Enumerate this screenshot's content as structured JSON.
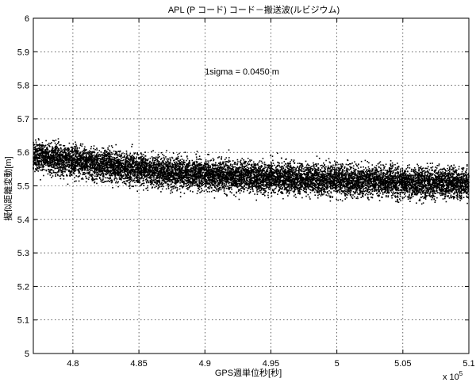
{
  "chart_data": {
    "type": "scatter",
    "title": "APL (P コード) コード－搬送波(ルビジウム)",
    "xlabel": "GPS週単位秒[秒]",
    "ylabel": "擬似距離変動[m]",
    "x_exponent_label": "x 10",
    "x_exponent_power": "5",
    "annotation": "1sigma = 0.0450 m",
    "xlim": [
      477000,
      510000
    ],
    "ylim": [
      5.0,
      6.0
    ],
    "xticks": [
      480000,
      485000,
      490000,
      495000,
      500000,
      505000,
      510000
    ],
    "xtick_labels": [
      "4.8",
      "4.85",
      "4.9",
      "4.95",
      "5",
      "5.05",
      "5.1"
    ],
    "yticks": [
      5.0,
      5.1,
      5.2,
      5.3,
      5.4,
      5.5,
      5.6,
      5.7,
      5.8,
      5.9,
      6.0
    ],
    "ytick_labels": [
      "5",
      "5.1",
      "5.2",
      "5.3",
      "5.4",
      "5.5",
      "5.6",
      "5.7",
      "5.8",
      "5.9",
      "6"
    ],
    "grid": true,
    "marker_color": "#000000",
    "series": [
      {
        "x": [
          477000,
          478000,
          479000,
          480000,
          481000,
          482000,
          483000,
          484000,
          485000,
          486000,
          487000,
          488000,
          489000,
          490000,
          491000,
          492000,
          493000,
          494000,
          495000,
          496000,
          497000,
          498000,
          499000,
          500000,
          501000,
          502000,
          503000,
          504000,
          505000,
          506000,
          507000,
          508000,
          509000,
          510000
        ],
        "y": [
          5.59,
          5.585,
          5.58,
          5.575,
          5.57,
          5.565,
          5.56,
          5.555,
          5.55,
          5.545,
          5.54,
          5.54,
          5.535,
          5.535,
          5.53,
          5.53,
          5.53,
          5.525,
          5.525,
          5.525,
          5.52,
          5.52,
          5.52,
          5.52,
          5.515,
          5.515,
          5.515,
          5.515,
          5.51,
          5.51,
          5.51,
          5.51,
          5.51,
          5.505
        ]
      }
    ]
  }
}
